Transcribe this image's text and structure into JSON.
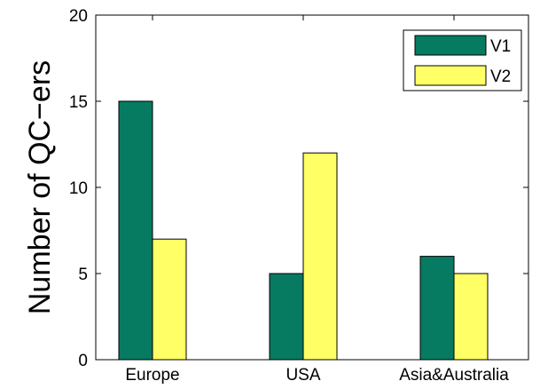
{
  "chart_data": {
    "type": "bar",
    "categories": [
      "Europe",
      "USA",
      "Asia&Australia"
    ],
    "series": [
      {
        "name": "V1",
        "values": [
          15,
          5,
          6
        ],
        "color": "#077a62"
      },
      {
        "name": "V2",
        "values": [
          7,
          12,
          5
        ],
        "color": "#ffff66"
      }
    ],
    "ylabel": "Number of QC−ers",
    "xlabel": "",
    "title": "",
    "ylim": [
      0,
      20
    ],
    "yticks": [
      0,
      5,
      10,
      15,
      20
    ],
    "grid": false,
    "legend_position": "top-right"
  }
}
